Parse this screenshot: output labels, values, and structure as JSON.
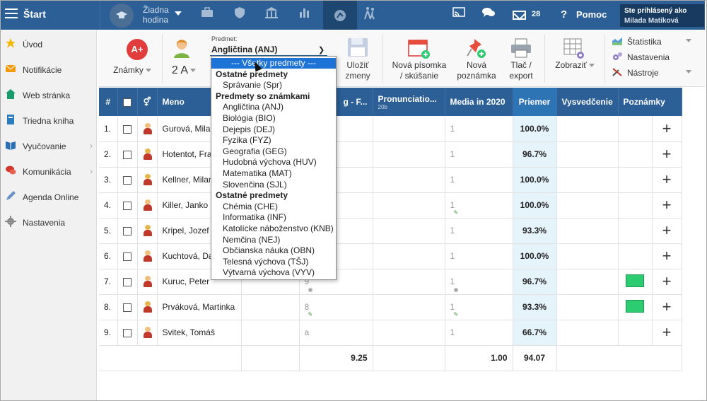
{
  "topbar": {
    "start_label": "Štart",
    "hour_label_1": "Žiadna",
    "hour_label_2": "hodina",
    "message_count": "28",
    "help_label": "Pomoc",
    "logged_as": "Ste prihlásený ako",
    "user_name": "Milada Matiková"
  },
  "sidebar": {
    "items": [
      {
        "label": "Úvod",
        "icon": "star-icon",
        "color": "#f5b800"
      },
      {
        "label": "Notifikácie",
        "icon": "envelope-icon",
        "color": "#f39c12"
      },
      {
        "label": "Web stránka",
        "icon": "home-icon",
        "color": "#1a9b6b"
      },
      {
        "label": "Triedna kniha",
        "icon": "book-icon",
        "color": "#2b7bc0"
      },
      {
        "label": "Vyučovanie",
        "icon": "open-book-icon",
        "color": "#2b6fb0"
      },
      {
        "label": "Komunikácia",
        "icon": "chat-icon",
        "color": "#d0392b"
      },
      {
        "label": "Agenda Online",
        "icon": "pen-icon",
        "color": "#6b8fc8"
      },
      {
        "label": "Nastavenia",
        "icon": "gear-icon",
        "color": "#888888"
      }
    ]
  },
  "toolbar": {
    "grade_badge": "A+",
    "grades_label": "Známky",
    "class_label": "2 A",
    "subject_caption": "Predmet:",
    "subject_value": "Angličtina (ANJ)",
    "save_1": "Uložiť",
    "save_2": "zmeny",
    "new_test_1": "Nová písomka",
    "new_test_2": "/ skúšanie",
    "new_note_1": "Nová",
    "new_note_2": "poznámka",
    "print_1": "Tlač /",
    "print_2": "export",
    "show_label": "Zobraziť",
    "right_menu": [
      "Štatistika",
      "Nastavenia",
      "Nástroje"
    ]
  },
  "table": {
    "headers": {
      "num": "#",
      "name": "Meno",
      "col_a": "g - F...",
      "col_b": "Pronunciatio...",
      "col_b_sub": "20b",
      "col_c": "Media in 2020",
      "avg": "Priemer",
      "report": "Vysvedčenie",
      "notes": "Poznámky"
    },
    "rows": [
      {
        "num": "1.",
        "name": "Gurová, Mila",
        "gender": "boy",
        "a": "",
        "c": "1",
        "avg": "100.0%"
      },
      {
        "num": "2.",
        "name": "Hotentot, Fra",
        "gender": "girl",
        "a": "",
        "c": "1",
        "avg": "96.7%"
      },
      {
        "num": "3.",
        "name": "Kellner, Milan",
        "gender": "girl",
        "a": "",
        "c": "1",
        "avg": "100.0%"
      },
      {
        "num": "4.",
        "name": "Killer, Janko",
        "gender": "boy",
        "a": "",
        "c": "1",
        "avg": "100.0%"
      },
      {
        "num": "5.",
        "name": "Kripel, Jozef",
        "gender": "girl",
        "a": "",
        "c": "1",
        "avg": "93.3%"
      },
      {
        "num": "6.",
        "name": "Kuchtová, Da",
        "gender": "boy",
        "a": "",
        "c": "1",
        "avg": "100.0%"
      },
      {
        "num": "7.",
        "name": "Kuruc, Peter",
        "gender": "boy",
        "a": "9",
        "c": "1",
        "avg": "96.7%"
      },
      {
        "num": "8.",
        "name": "Prváková, Martinka",
        "gender": "girl",
        "a": "8",
        "c": "1",
        "avg": "93.3%"
      },
      {
        "num": "9.",
        "name": "Svitek, Tomáš",
        "gender": "boy",
        "a": "a",
        "c": "1",
        "avg": "66.7%"
      }
    ],
    "footer": {
      "col_a": "9.25",
      "col_c": "1.00",
      "avg": "94.07"
    }
  },
  "dropdown": {
    "items": [
      {
        "label": "--- Všetky predmety ---",
        "type": "selected"
      },
      {
        "label": "Ostatné predmety",
        "type": "group"
      },
      {
        "label": "Správanie (Spr)",
        "type": "item"
      },
      {
        "label": "Predmety so známkami",
        "type": "group"
      },
      {
        "label": "Angličtina (ANJ)",
        "type": "item"
      },
      {
        "label": "Biológia (BIO)",
        "type": "item"
      },
      {
        "label": "Dejepis (DEJ)",
        "type": "item"
      },
      {
        "label": "Fyzika (FYZ)",
        "type": "item"
      },
      {
        "label": "Geografia (GEG)",
        "type": "item"
      },
      {
        "label": "Hudobná výchova (HUV)",
        "type": "item"
      },
      {
        "label": "Matematika (MAT)",
        "type": "item"
      },
      {
        "label": "Slovenčina (SJL)",
        "type": "item"
      },
      {
        "label": "Ostatné predmety",
        "type": "group"
      },
      {
        "label": "Chémia (CHE)",
        "type": "item"
      },
      {
        "label": "Informatika (INF)",
        "type": "item"
      },
      {
        "label": "Katolícke náboženstvo (KNB)",
        "type": "item"
      },
      {
        "label": "Nemčina (NEJ)",
        "type": "item"
      },
      {
        "label": "Občianska náuka (OBN)",
        "type": "item"
      },
      {
        "label": "Telesná výchova (TŠJ)",
        "type": "item"
      },
      {
        "label": "Výtvarná výchova (VYV)",
        "type": "item"
      }
    ]
  },
  "colors": {
    "topbar": "#2b5f95",
    "header": "#2b5f95",
    "average_bg": "#e5f3fb",
    "selected": "#1e74d6",
    "note_green": "#2ecc71"
  }
}
